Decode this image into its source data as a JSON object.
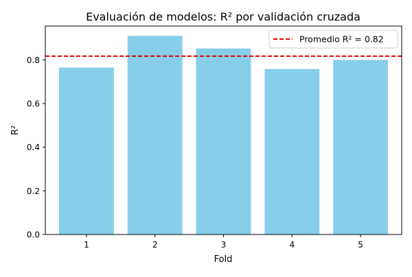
{
  "chart_data": {
    "type": "bar",
    "title": "Evaluación de modelos: R² por validación cruzada",
    "xlabel": "Fold",
    "ylabel": "R²",
    "categories": [
      "1",
      "2",
      "3",
      "4",
      "5"
    ],
    "values": [
      0.765,
      0.91,
      0.852,
      0.758,
      0.8
    ],
    "ylim": [
      0,
      0.955
    ],
    "yticks": [
      "0.0",
      "0.2",
      "0.4",
      "0.6",
      "0.8"
    ],
    "ytick_values": [
      0,
      0.2,
      0.4,
      0.6,
      0.8
    ],
    "bar_color": "#87ceeb",
    "reference_line": {
      "label": "Promedio R² = 0.82",
      "value": 0.817,
      "color": "#e00000",
      "style": "dashed"
    },
    "legend_position": "top-right",
    "grid": false
  }
}
